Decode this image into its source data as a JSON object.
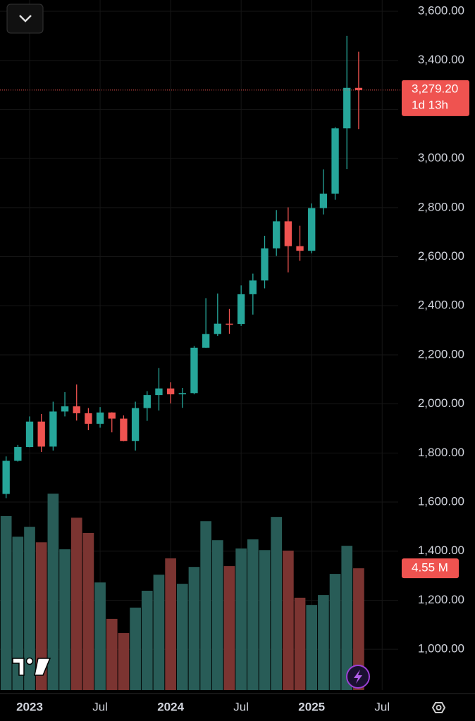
{
  "chart_data": {
    "type": "candlestick",
    "x": [
      -2,
      -1,
      0,
      1,
      2,
      3,
      4,
      5,
      6,
      7,
      8,
      9,
      10,
      11,
      12,
      13,
      14,
      15,
      16,
      17,
      18,
      19,
      20,
      21,
      22,
      23,
      24,
      25,
      26,
      27,
      28
    ],
    "open": [
      1633,
      1768,
      1824,
      1928,
      1826,
      1969,
      1990,
      1962,
      1919,
      1965,
      1940,
      1849,
      1983,
      2036,
      2063,
      2039,
      2044,
      2229,
      2285,
      2327,
      2326,
      2447,
      2503,
      2634,
      2744,
      2643,
      2624,
      2798,
      2857,
      3123,
      3288
    ],
    "high": [
      1786,
      1833,
      1949,
      1959,
      2009,
      2048,
      2079,
      1983,
      1987,
      1966,
      1953,
      2009,
      2052,
      2146,
      2088,
      2065,
      2236,
      2431,
      2450,
      2387,
      2483,
      2531,
      2685,
      2790,
      2801,
      2726,
      2817,
      2956,
      3128,
      3500,
      3435
    ],
    "low": [
      1616,
      1765,
      1823,
      1804,
      1810,
      1949,
      1932,
      1893,
      1903,
      1884,
      1848,
      1810,
      1931,
      1973,
      2002,
      1984,
      2039,
      2228,
      2277,
      2286,
      2318,
      2364,
      2471,
      2603,
      2536,
      2583,
      2614,
      2772,
      2832,
      2957,
      3120
    ],
    "close": [
      1768,
      1824,
      1928,
      1826,
      1969,
      1990,
      1962,
      1919,
      1965,
      1940,
      1849,
      1983,
      2036,
      2063,
      2039,
      2044,
      2229,
      2285,
      2327,
      2326,
      2447,
      2503,
      2634,
      2744,
      2643,
      2624,
      2798,
      2857,
      3123,
      3288,
      3279
    ],
    "volume": {
      "values": [
        6.5,
        5.73,
        6.1,
        5.52,
        7.34,
        5.26,
        6.44,
        5.87,
        4.02,
        2.66,
        2.13,
        3.08,
        3.71,
        4.31,
        4.92,
        3.97,
        4.6,
        6.31,
        5.6,
        4.63,
        5.29,
        5.63,
        5.23,
        6.47,
        5.21,
        3.45,
        3.18,
        3.55,
        4.34,
        5.39,
        4.55
      ],
      "ylim": [
        0,
        8
      ],
      "last_label": "4.55 M"
    },
    "colors": {
      "up": "#26a69a",
      "down": "#ef5350",
      "volume_up": "#285c57",
      "volume_down": "#7b3431"
    },
    "xlim": [
      -2.52,
      37.9
    ],
    "xticks": [
      {
        "value": 0,
        "label": "2023"
      },
      {
        "value": 6,
        "label": "Jul"
      },
      {
        "value": 12,
        "label": "2024"
      },
      {
        "value": 18,
        "label": "Jul"
      },
      {
        "value": 24,
        "label": "2025"
      },
      {
        "value": 30,
        "label": "Jul"
      }
    ],
    "ylim": [
      834,
      3646
    ],
    "yticks": [
      {
        "value": 1000,
        "label": "1,000.00"
      },
      {
        "value": 1200,
        "label": "1,200.00"
      },
      {
        "value": 1400,
        "label": "1,400.00"
      },
      {
        "value": 1600,
        "label": "1,600.00"
      },
      {
        "value": 1800,
        "label": "1,800.00"
      },
      {
        "value": 2000,
        "label": "2,000.00"
      },
      {
        "value": 2200,
        "label": "2,200.00"
      },
      {
        "value": 2400,
        "label": "2,400.00"
      },
      {
        "value": 2600,
        "label": "2,600.00"
      },
      {
        "value": 2800,
        "label": "2,800.00"
      },
      {
        "value": 3000,
        "label": "3,000.00"
      },
      {
        "value": 3200,
        "label": "3,200.00"
      },
      {
        "value": 3400,
        "label": "3,400.00"
      },
      {
        "value": 3600,
        "label": "3,600.00"
      }
    ],
    "grid": true,
    "last_price": 3279.2,
    "last_price_label": "3,279.20",
    "countdown": "1d 13h"
  }
}
